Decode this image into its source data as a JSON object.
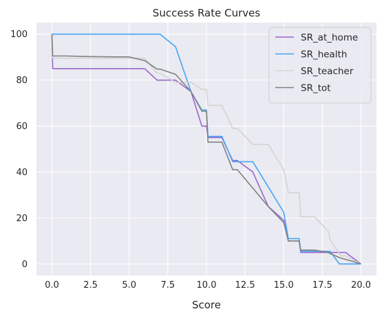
{
  "chart_data": {
    "type": "line",
    "title": "Success Rate Curves",
    "xlabel": "Score",
    "ylabel": "",
    "xlim": [
      -1,
      21
    ],
    "ylim": [
      -5,
      105
    ],
    "xticks": [
      0.0,
      2.5,
      5.0,
      7.5,
      10.0,
      12.5,
      15.0,
      17.5,
      20.0
    ],
    "xtick_labels": [
      "0.0",
      "2.5",
      "5.0",
      "7.5",
      "10.0",
      "12.5",
      "15.0",
      "17.5",
      "20.0"
    ],
    "yticks": [
      0,
      20,
      40,
      60,
      80,
      100
    ],
    "ytick_labels": [
      "0",
      "20",
      "40",
      "60",
      "80",
      "100"
    ],
    "grid": true,
    "background": "#eaeaf2",
    "legend_position": "top-right",
    "series": [
      {
        "name": "SR_at_home",
        "color": "#9966cc",
        "x": [
          0,
          0.05,
          1,
          2,
          3,
          4,
          5,
          6,
          6.8,
          7,
          8,
          9,
          9.7,
          10,
          10.1,
          11,
          11.7,
          12,
          13,
          14,
          15,
          15.3,
          16,
          16.1,
          17,
          17.9,
          18,
          18.7,
          19,
          20
        ],
        "y": [
          100,
          85,
          85,
          85,
          85,
          85,
          85,
          85,
          80,
          80,
          80,
          75,
          60,
          60,
          55,
          55,
          45,
          45,
          40,
          25,
          19,
          10,
          10,
          5,
          5,
          5,
          5,
          5,
          5,
          0
        ]
      },
      {
        "name": "SR_health",
        "color": "#42a5f5",
        "x": [
          0,
          0.05,
          1,
          2,
          3,
          4,
          5,
          6,
          7,
          8,
          9,
          9.7,
          10,
          10.1,
          11,
          11.7,
          12,
          13,
          14,
          15,
          15.3,
          16,
          16.1,
          17,
          17.9,
          18,
          18.6,
          19,
          20
        ],
        "y": [
          100,
          100,
          100,
          100,
          100,
          100,
          100,
          100,
          100,
          94.5,
          75,
          67,
          67,
          55.5,
          55.5,
          44.5,
          44.5,
          44.5,
          33.5,
          22.5,
          11,
          11,
          5.5,
          5.5,
          5.5,
          5.5,
          0,
          0,
          0
        ]
      },
      {
        "name": "SR_teacher",
        "color": "#d3d3d3",
        "x": [
          0,
          0.05,
          1,
          2,
          3,
          4,
          5,
          6,
          6.8,
          7,
          8,
          9,
          9.7,
          10,
          10.1,
          11,
          11.7,
          12,
          13,
          14,
          15,
          15.3,
          16,
          16.1,
          17,
          17.9,
          18,
          18.7,
          19,
          20
        ],
        "y": [
          100,
          89.5,
          89.5,
          89.5,
          89.5,
          89.5,
          89.5,
          89.5,
          83,
          83,
          79,
          79,
          76,
          76,
          69,
          69,
          59,
          59,
          52,
          52,
          41,
          31,
          31,
          20.5,
          20.5,
          14,
          10.5,
          3.5,
          3.5,
          0
        ]
      },
      {
        "name": "SR_tot",
        "color": "#808080",
        "x": [
          0,
          0.05,
          1,
          2,
          3,
          4,
          5,
          6,
          6.8,
          7,
          8,
          9,
          9.7,
          10,
          10.1,
          11,
          11.7,
          12,
          13,
          14,
          15,
          15.3,
          16,
          16.1,
          17,
          17.9,
          18,
          18.7,
          19,
          20
        ],
        "y": [
          100,
          90.5,
          90.5,
          90.3,
          90.2,
          90.1,
          90.1,
          88.5,
          84.8,
          84.8,
          82.5,
          75,
          66.5,
          66.5,
          53,
          53,
          41,
          41,
          33,
          25,
          18,
          10,
          10,
          6,
          6,
          5,
          4.5,
          2.5,
          2,
          0
        ]
      }
    ]
  }
}
